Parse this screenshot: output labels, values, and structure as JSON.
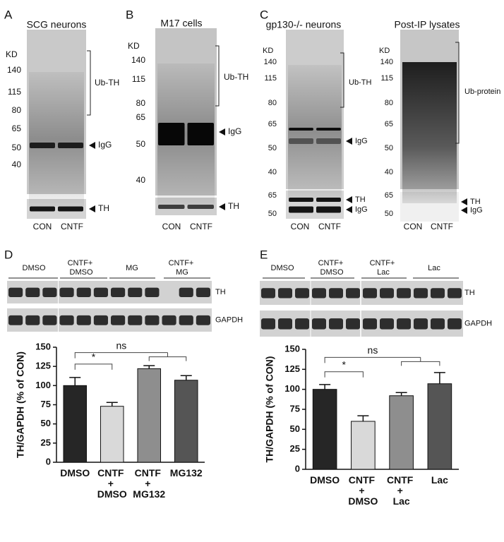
{
  "panels": {
    "A": {
      "label": "A",
      "title": "SCG neurons",
      "unit": "KD",
      "markers": [
        140,
        115,
        80,
        65,
        50,
        40
      ],
      "bracket": "Ub-TH",
      "arrows": [
        "IgG",
        "TH"
      ],
      "lanes": [
        "CON",
        "CNTF"
      ]
    },
    "B": {
      "label": "B",
      "title": "M17 cells",
      "unit": "KD",
      "markers": [
        140,
        115,
        80,
        65,
        50,
        40
      ],
      "bracket": "Ub-TH",
      "arrows": [
        "IgG",
        "TH"
      ],
      "lanes": [
        "CON",
        "CNTF"
      ]
    },
    "C": {
      "label": "C",
      "title": "gp130-/- neurons",
      "unit": "KD",
      "markers": [
        140,
        115,
        80,
        65,
        50,
        40,
        65,
        50
      ],
      "bracket": "Ub-TH",
      "arrows": [
        "IgG",
        "TH",
        "IgG"
      ],
      "lanes": [
        "CON",
        "CNTF"
      ]
    },
    "C2": {
      "title": "Post-IP lysates",
      "unit": "KD",
      "markers": [
        140,
        115,
        80,
        65,
        50,
        40,
        65,
        50
      ],
      "bracket": "Ub-protein",
      "arrows": [
        "TH",
        "IgG"
      ],
      "lanes": [
        "CON",
        "CNTF"
      ]
    },
    "D": {
      "label": "D",
      "groups": [
        "DMSO",
        "CNTF+ DMSO",
        "MG",
        "CNTF+ MG"
      ],
      "rows": [
        "TH",
        "GAPDH"
      ]
    },
    "E": {
      "label": "E",
      "groups": [
        "DMSO",
        "CNTF+ DMSO",
        "CNTF+ Lac",
        "Lac"
      ],
      "rows": [
        "TH",
        "GAPDH"
      ]
    }
  },
  "chart_data": [
    {
      "type": "bar",
      "y_label": "TH/GAPDH (% of CON)",
      "categories": [
        "DMSO",
        "CNTF + DMSO",
        "CNTF + MG132",
        "MG132"
      ],
      "values": [
        100,
        73,
        122,
        107
      ],
      "errors": [
        10.5,
        5,
        4,
        6
      ],
      "colors": [
        "#262626",
        "#d9d9d9",
        "#8e8e8e",
        "#555555"
      ],
      "ylim": [
        0,
        150
      ],
      "yticks": [
        0,
        25,
        50,
        75,
        100,
        125,
        150
      ],
      "annotations": [
        "*",
        "ns"
      ]
    },
    {
      "type": "bar",
      "y_label": "TH/GAPDH (% of CON)",
      "categories": [
        "DMSO",
        "CNTF + DMSO",
        "CNTF + Lac",
        "Lac"
      ],
      "values": [
        100,
        60,
        92,
        107
      ],
      "errors": [
        6,
        7,
        4,
        14
      ],
      "colors": [
        "#262626",
        "#d9d9d9",
        "#8e8e8e",
        "#555555"
      ],
      "ylim": [
        0,
        150
      ],
      "yticks": [
        0,
        25,
        50,
        75,
        100,
        125,
        150
      ],
      "annotations": [
        "*",
        "ns"
      ]
    }
  ]
}
